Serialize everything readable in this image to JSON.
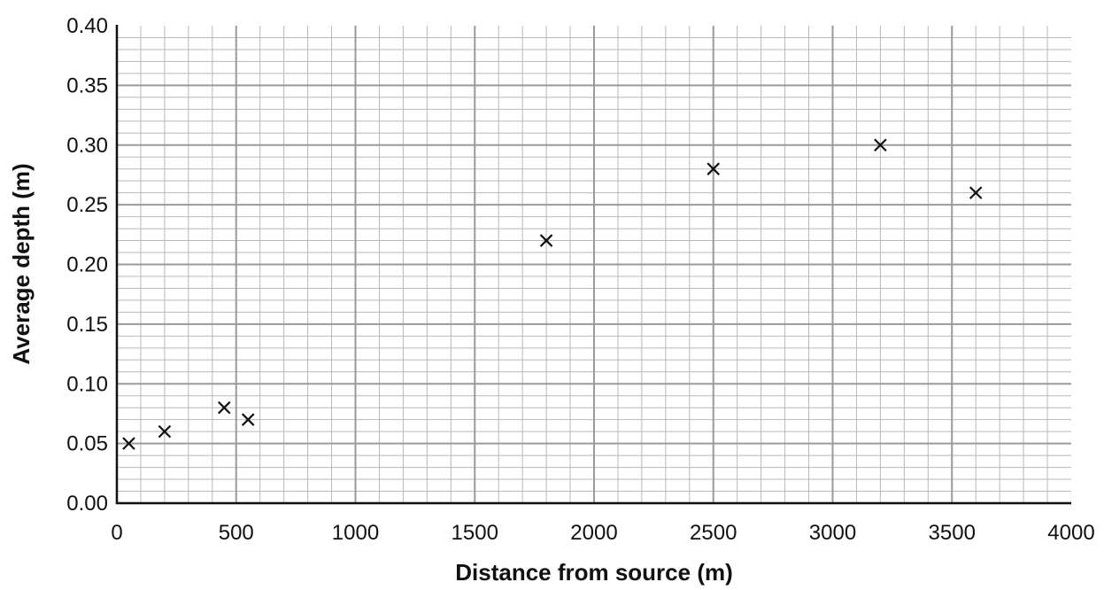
{
  "chart_data": {
    "type": "scatter",
    "title": "",
    "xlabel": "Distance from source (m)",
    "ylabel": "Average depth (m)",
    "xlim": [
      0,
      4000
    ],
    "ylim": [
      0,
      0.4
    ],
    "x_ticks": [
      "0",
      "500",
      "1000",
      "1500",
      "2000",
      "2500",
      "3000",
      "3500",
      "4000"
    ],
    "y_ticks": [
      "0.00",
      "0.05",
      "0.10",
      "0.15",
      "0.20",
      "0.25",
      "0.30",
      "0.35",
      "0.40"
    ],
    "x_tick_values": [
      0,
      500,
      1000,
      1500,
      2000,
      2500,
      3000,
      3500,
      4000
    ],
    "y_tick_values": [
      0,
      0.05,
      0.1,
      0.15,
      0.2,
      0.25,
      0.3,
      0.35,
      0.4
    ],
    "grid": true,
    "marker": "x",
    "series": [
      {
        "x": [
          50,
          200,
          450,
          550,
          1800,
          2500,
          3200,
          3600
        ],
        "y": [
          0.05,
          0.06,
          0.08,
          0.07,
          0.22,
          0.28,
          0.3,
          0.26
        ]
      }
    ]
  }
}
